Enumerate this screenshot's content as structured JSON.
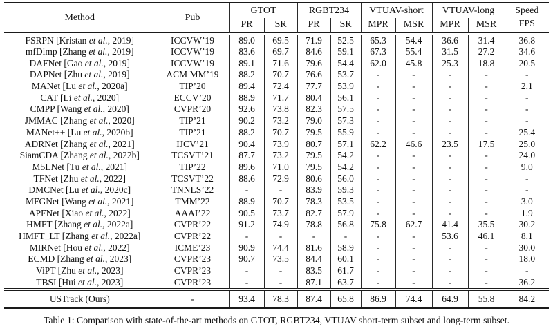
{
  "caption": "Table 1: Comparison with state-of-the-art methods on GTOT, RGBT234, VTUAV short-term subset and long-term subset.",
  "table": {
    "header": {
      "method": "Method",
      "pub": "Pub",
      "groups": [
        {
          "label": "GTOT",
          "sub1": "PR",
          "sub2": "SR"
        },
        {
          "label": "RGBT234",
          "sub1": "PR",
          "sub2": "SR"
        },
        {
          "label": "VTUAV-short",
          "sub1": "MPR",
          "sub2": "MSR"
        },
        {
          "label": "VTUAV-long",
          "sub1": "MPR",
          "sub2": "MSR"
        }
      ],
      "speed_line1": "Speed",
      "speed_line2": "FPS"
    },
    "rows": [
      {
        "method": "FSRPN [Kristan et al., 2019]",
        "pub": "ICCVW’19",
        "values": [
          "89.0",
          "69.5",
          "71.9",
          "52.5",
          "65.3",
          "54.4",
          "36.6",
          "31.4",
          "36.8"
        ]
      },
      {
        "method": "mfDimp [Zhang et al., 2019]",
        "pub": "ICCVW’19",
        "values": [
          "83.6",
          "69.7",
          "84.6",
          "59.1",
          "67.3",
          "55.4",
          "31.5",
          "27.2",
          "34.6"
        ]
      },
      {
        "method": "DAFNet [Gao et al., 2019]",
        "pub": "ICCVW’19",
        "values": [
          "89.1",
          "71.6",
          "79.6",
          "54.4",
          "62.0",
          "45.8",
          "25.3",
          "18.8",
          "20.5"
        ]
      },
      {
        "method": "DAPNet [Zhu et al., 2019]",
        "pub": "ACM MM’19",
        "values": [
          "88.2",
          "70.7",
          "76.6",
          "53.7",
          "-",
          "-",
          "-",
          "-",
          "-"
        ]
      },
      {
        "method": "MANet [Lu et al., 2020a]",
        "pub": "TIP’20",
        "values": [
          "89.4",
          "72.4",
          "77.7",
          "53.9",
          "-",
          "-",
          "-",
          "-",
          "2.1"
        ]
      },
      {
        "method": "CAT [Li et al., 2020]",
        "pub": "ECCV’20",
        "values": [
          "88.9",
          "71.7",
          "80.4",
          "56.1",
          "-",
          "-",
          "-",
          "-",
          "-"
        ]
      },
      {
        "method": "CMPP [Wang et al., 2020]",
        "pub": "CVPR’20",
        "values": [
          "92.6",
          "73.8",
          "82.3",
          "57.5",
          "-",
          "-",
          "-",
          "-",
          "-"
        ]
      },
      {
        "method": "JMMAC [Zhang et al., 2020]",
        "pub": "TIP’21",
        "values": [
          "90.2",
          "73.2",
          "79.0",
          "57.3",
          "-",
          "-",
          "-",
          "-",
          "-"
        ]
      },
      {
        "method": "MANet++ [Lu et al., 2020b]",
        "pub": "TIP’21",
        "values": [
          "88.2",
          "70.7",
          "79.5",
          "55.9",
          "-",
          "-",
          "-",
          "-",
          "25.4"
        ]
      },
      {
        "method": "ADRNet [Zhang et al., 2021]",
        "pub": "IJCV’21",
        "values": [
          "90.4",
          "73.9",
          "80.7",
          "57.1",
          "62.2",
          "46.6",
          "23.5",
          "17.5",
          "25.0"
        ]
      },
      {
        "method": "SiamCDA [Zhang et al., 2022b]",
        "pub": "TCSVT’21",
        "values": [
          "87.7",
          "73.2",
          "79.5",
          "54.2",
          "-",
          "-",
          "-",
          "-",
          "24.0"
        ]
      },
      {
        "method": "M5LNet [Tu et al., 2021]",
        "pub": "TIP’22",
        "values": [
          "89.6",
          "71.0",
          "79.5",
          "54.2",
          "-",
          "-",
          "-",
          "-",
          "9.0"
        ]
      },
      {
        "method": "TFNet [Zhu et al., 2022]",
        "pub": "TCSVT’22",
        "values": [
          "88.6",
          "72.9",
          "80.6",
          "56.0",
          "-",
          "-",
          "-",
          "-",
          "-"
        ]
      },
      {
        "method": "DMCNet [Lu et al., 2020c]",
        "pub": "TNNLS’22",
        "values": [
          "-",
          "-",
          "83.9",
          "59.3",
          "-",
          "-",
          "-",
          "-",
          "-"
        ]
      },
      {
        "method": "MFGNet [Wang et al., 2021]",
        "pub": "TMM’22",
        "values": [
          "88.9",
          "70.7",
          "78.3",
          "53.5",
          "-",
          "-",
          "-",
          "-",
          "3.0"
        ]
      },
      {
        "method": "APFNet [Xiao et al., 2022]",
        "pub": "AAAI’22",
        "values": [
          "90.5",
          "73.7",
          "82.7",
          "57.9",
          "-",
          "-",
          "-",
          "-",
          "1.9"
        ]
      },
      {
        "method": "HMFT [Zhang et al., 2022a]",
        "pub": "CVPR’22",
        "values": [
          "91.2",
          "74.9",
          "78.8",
          "56.8",
          "75.8",
          "62.7",
          "41.4",
          "35.5",
          "30.2"
        ]
      },
      {
        "method": "HMFT_LT [Zhang et al., 2022a]",
        "pub": "CVPR’22",
        "values": [
          "-",
          "-",
          "-",
          "-",
          "-",
          "-",
          "53.6",
          "46.1",
          "8.1"
        ]
      },
      {
        "method": "MIRNet [Hou et al., 2022]",
        "pub": "ICME’23",
        "values": [
          "90.9",
          "74.4",
          "81.6",
          "58.9",
          "-",
          "-",
          "-",
          "-",
          "30.0"
        ]
      },
      {
        "method": "ECMD [Zhang et al., 2023]",
        "pub": "CVPR’23",
        "values": [
          "90.7",
          "73.5",
          "84.4",
          "60.1",
          "-",
          "-",
          "-",
          "-",
          "18.0"
        ]
      },
      {
        "method": "ViPT [Zhu et al., 2023]",
        "pub": "CVPR’23",
        "values": [
          "-",
          "-",
          "83.5",
          "61.7",
          "-",
          "-",
          "-",
          "-",
          "-"
        ]
      },
      {
        "method": "TBSI [Hui et al., 2023]",
        "pub": "CVPR’23",
        "values": [
          "-",
          "-",
          "87.1",
          "63.7",
          "-",
          "-",
          "-",
          "-",
          "36.2"
        ]
      }
    ],
    "footer_row": {
      "method": "USTrack (Ours)",
      "pub": "-",
      "values": [
        "93.4",
        "78.3",
        "87.4",
        "65.8",
        "86.9",
        "74.4",
        "64.9",
        "55.8",
        "84.2"
      ]
    }
  }
}
